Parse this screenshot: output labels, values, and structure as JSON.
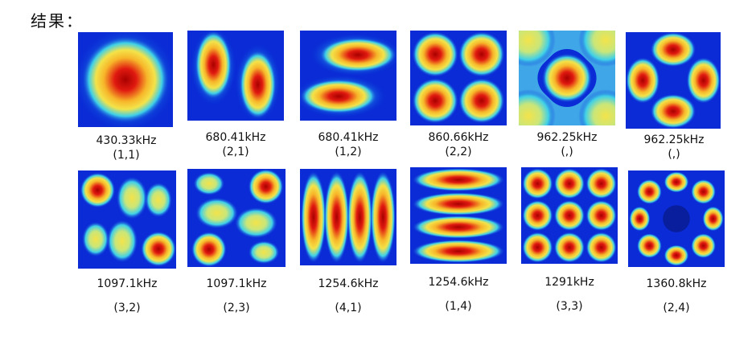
{
  "title": "结果：",
  "colors": {
    "field_low": "#0a2bd6",
    "field_mid": "#3fd0e8",
    "field_midhigh": "#f3e34a",
    "field_high": "#e01a10",
    "field_peak": "#a80000"
  },
  "modes": [
    {
      "freq": "430.33kHz",
      "index": "(1,1)"
    },
    {
      "freq": "680.41kHz",
      "index": "(2,1)"
    },
    {
      "freq": "680.41kHz",
      "index": "(1,2)"
    },
    {
      "freq": "860.66kHz",
      "index": "(2,2)"
    },
    {
      "freq": "962.25kHz",
      "index": "(,)"
    },
    {
      "freq": "962.25kHz",
      "index": "(,)"
    },
    {
      "freq": "1097.1kHz",
      "index": "(3,2)"
    },
    {
      "freq": "1097.1kHz",
      "index": "(2,3)"
    },
    {
      "freq": "1254.6kHz",
      "index": "(4,1)"
    },
    {
      "freq": "1254.6kHz",
      "index": "(1,4)"
    },
    {
      "freq": "1291kHz",
      "index": "(3,3)"
    },
    {
      "freq": "1360.8kHz",
      "index": "(2,4)"
    }
  ]
}
